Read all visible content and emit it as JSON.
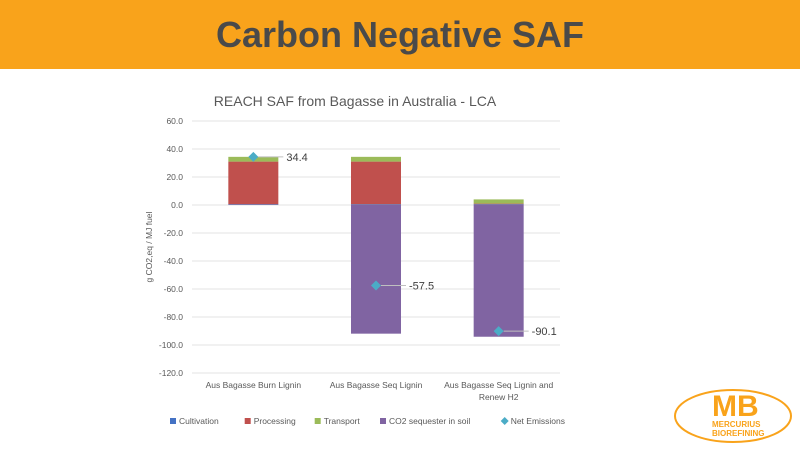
{
  "slide": {
    "title": "Carbon Negative SAF",
    "logo_text": "MB MERCURIUS BIOREFINING"
  },
  "colors": {
    "banner": "#f9a31b",
    "Cultivation": "#4472c4",
    "Processing": "#c0504d",
    "Transport": "#9bbb59",
    "CO2 sequester in soil": "#8064a2",
    "Net Emissions": "#4bacc6"
  },
  "chart_data": {
    "type": "bar",
    "stacked": true,
    "title": "REACH SAF from Bagasse in Australia - LCA",
    "xlabel": "",
    "ylabel": "g CO2,eq / MJ fuel",
    "ylim": [
      -120,
      60
    ],
    "yticks": [
      "60.0",
      "40.0",
      "20.0",
      "0.0",
      "-20.0",
      "-40.0",
      "-60.0",
      "-80.0",
      "-100.0",
      "-120.0"
    ],
    "categories": [
      "Aus Bagasse Burn Lignin",
      "Aus Bagasse Seq Lignin",
      "Aus Bagasse Seq Lignin and Renew H2"
    ],
    "series": [
      {
        "name": "Cultivation",
        "values": [
          0.5,
          0.5,
          0.5
        ]
      },
      {
        "name": "Processing",
        "values": [
          30.5,
          30.5,
          0.5
        ]
      },
      {
        "name": "Transport",
        "values": [
          3.4,
          3.4,
          3.0
        ]
      },
      {
        "name": "CO2 sequester in soil",
        "values": [
          0,
          -91.9,
          -94.1
        ]
      }
    ],
    "net": {
      "name": "Net Emissions",
      "values": [
        34.4,
        -57.5,
        -90.1
      ],
      "labels": [
        "34.4",
        "-57.5",
        "-90.1"
      ]
    },
    "grid": true,
    "legend": "bottom"
  }
}
